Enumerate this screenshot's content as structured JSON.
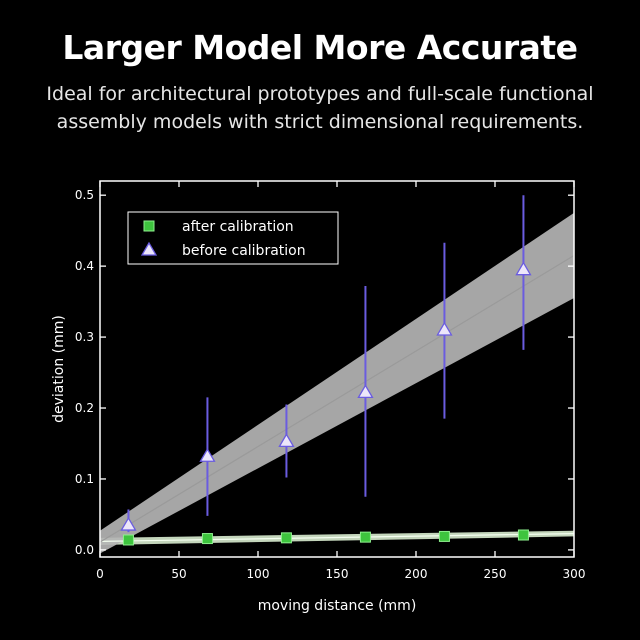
{
  "header": {
    "title": "Larger Model More Accurate",
    "subtitle_line1": "Ideal for architectural prototypes and full-scale functional",
    "subtitle_line2": "assembly models with strict dimensional requirements."
  },
  "chart_data": {
    "type": "scatter",
    "xlabel": "moving distance (mm)",
    "ylabel": "deviation (mm)",
    "xlim": [
      0,
      300
    ],
    "ylim": [
      -0.01,
      0.52
    ],
    "x_ticks": [
      0,
      50,
      100,
      150,
      200,
      250,
      300
    ],
    "y_ticks": [
      0.0,
      0.1,
      0.2,
      0.3,
      0.4,
      0.5
    ],
    "x_tick_labels": [
      "0",
      "50",
      "100",
      "150",
      "200",
      "250",
      "300"
    ],
    "y_tick_labels": [
      "0.0",
      "0.1",
      "0.2",
      "0.3",
      "0.4",
      "0.5"
    ],
    "grid": false,
    "legend_position": "top-left",
    "series": [
      {
        "name": "after calibration",
        "marker": "square",
        "color": "#3ec43e",
        "x": [
          18,
          68,
          118,
          168,
          218,
          268
        ],
        "y": [
          0.014,
          0.016,
          0.017,
          0.018,
          0.019,
          0.021
        ],
        "err": [
          0.005,
          0.005,
          0.005,
          0.005,
          0.005,
          0.005
        ],
        "band_start": [
          0,
          0.007,
          0.017
        ],
        "band_end": [
          300,
          0.019,
          0.027
        ]
      },
      {
        "name": "before calibration",
        "marker": "triangle",
        "color": "#ece6fa",
        "err_color": "#6a5ce0",
        "x": [
          18,
          68,
          118,
          168,
          218,
          268
        ],
        "y": [
          0.035,
          0.132,
          0.153,
          0.222,
          0.31,
          0.395
        ],
        "err_low": [
          0.025,
          0.048,
          0.102,
          0.075,
          0.185,
          0.282
        ],
        "err_high": [
          0.057,
          0.215,
          0.205,
          0.372,
          0.433,
          0.5
        ],
        "band_start": [
          0,
          -0.005,
          0.027
        ],
        "band_end": [
          300,
          0.355,
          0.475
        ]
      }
    ]
  }
}
